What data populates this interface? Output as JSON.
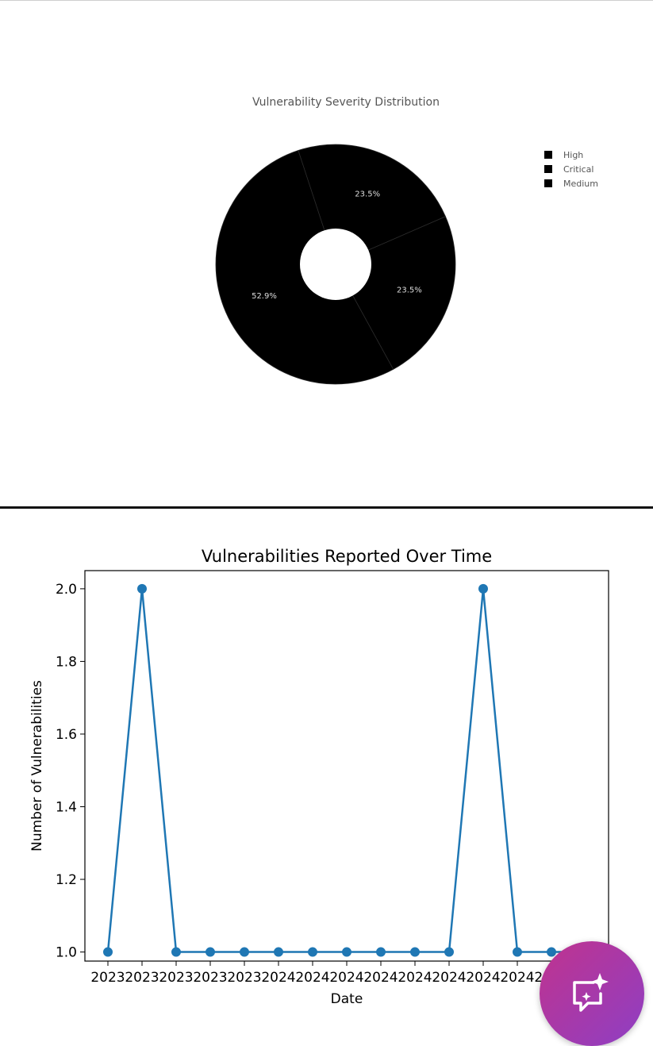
{
  "chart_data": [
    {
      "type": "pie",
      "title": "Vulnerability Severity Distribution",
      "donut": true,
      "legend_position": "top-right",
      "slices": [
        {
          "label": "High",
          "value": 52.9,
          "pct_label": "52.9%",
          "color": "#000000"
        },
        {
          "label": "Critical",
          "value": 23.5,
          "pct_label": "23.5%",
          "color": "#000000"
        },
        {
          "label": "Medium",
          "value": 23.5,
          "pct_label": "23.5%",
          "color": "#000000"
        }
      ]
    },
    {
      "type": "line",
      "title": "Vulnerabilities Reported Over Time",
      "xlabel": "Date",
      "ylabel": "Number of Vulnerabilities",
      "ylim": [
        0.975,
        2.05
      ],
      "yticks": [
        "1.0",
        "1.2",
        "1.4",
        "1.6",
        "1.8",
        "2.0"
      ],
      "grid": false,
      "color": "#1f77b4",
      "x": [
        "2023",
        "2023",
        "2023",
        "2023",
        "2023",
        "2024",
        "2024",
        "2024",
        "2024",
        "2024",
        "2024",
        "2024",
        "2024",
        "2024",
        "2024"
      ],
      "y": [
        1,
        2,
        1,
        1,
        1,
        1,
        1,
        1,
        1,
        1,
        1,
        2,
        1,
        1,
        1
      ]
    }
  ],
  "fab": {
    "icon": "chat-sparkle-icon"
  }
}
